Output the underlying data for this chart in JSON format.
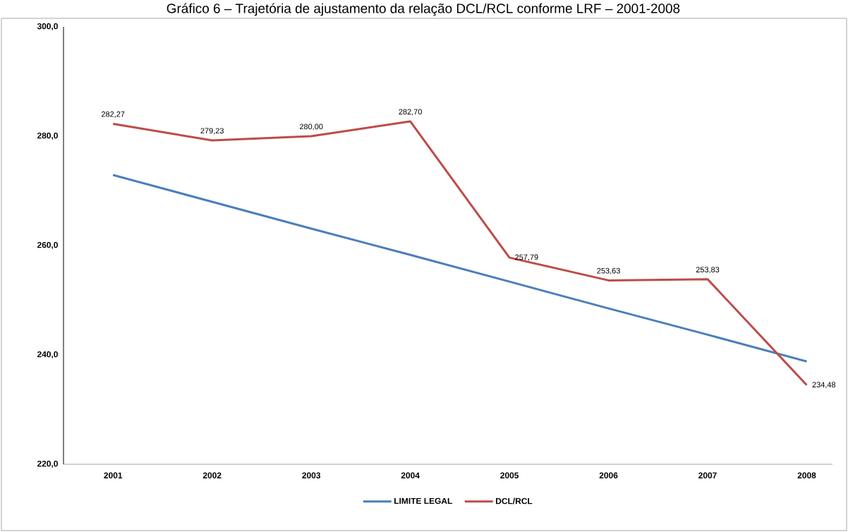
{
  "chart_data": {
    "type": "line",
    "title": "Gráfico 6 – Trajetória de ajustamento da relação DCL/RCL conforme LRF – 2001-2008",
    "categories": [
      "2001",
      "2002",
      "2003",
      "2004",
      "2005",
      "2006",
      "2007",
      "2008"
    ],
    "series": [
      {
        "name": "LIMITE LEGAL",
        "color": "#4a7ebb",
        "values": [
          272.9,
          268.0,
          263.1,
          258.3,
          253.4,
          248.5,
          243.7,
          238.8
        ]
      },
      {
        "name": "DCL/RCL",
        "color": "#be4b48",
        "values": [
          282.27,
          279.23,
          280.0,
          282.7,
          257.79,
          253.63,
          253.83,
          234.48
        ],
        "value_labels": [
          "282,27",
          "279,23",
          "280,00",
          "282,70",
          "257,79",
          "253,63",
          "253,83",
          "234,48"
        ]
      }
    ],
    "ylim": [
      220,
      300
    ],
    "yticks": [
      {
        "value": 220,
        "label": "220,0"
      },
      {
        "value": 240,
        "label": "240,0"
      },
      {
        "value": 260,
        "label": "260,0"
      },
      {
        "value": 280,
        "label": "280,0"
      },
      {
        "value": 300,
        "label": "300,0"
      }
    ],
    "grid": false,
    "legend": "bottom",
    "marker": "none",
    "line_style": "solid"
  }
}
